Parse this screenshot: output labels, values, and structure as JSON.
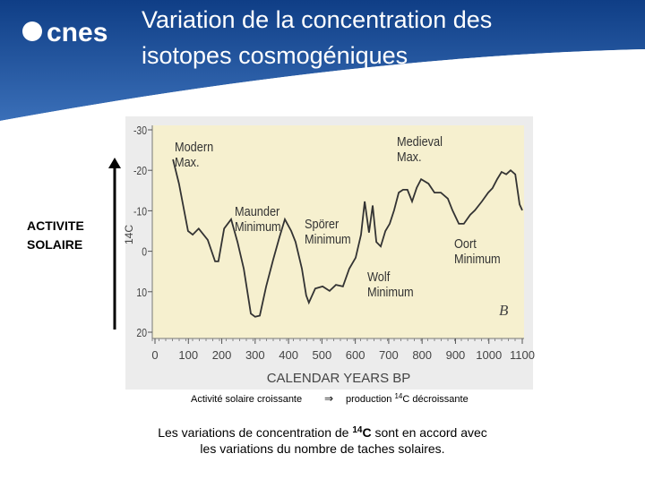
{
  "slide": {
    "logo": "cnes",
    "title": [
      "Variation de la concentration des",
      "isotopes cosmogéniques"
    ],
    "side_label": [
      "ACTIVITE",
      "SOLAIRE"
    ],
    "caption": {
      "left": "Activité solaire croissante",
      "arrow": "⇒",
      "right_pre": "production ",
      "right_sup": "14",
      "right_post": "C décroissante"
    },
    "footer": {
      "pre": "Les variations de concentration de ",
      "sup": "14",
      "el": "C",
      "post": " sont en accord avec",
      "line2": "les variations du nombre de taches solaires."
    }
  },
  "chart_data": {
    "type": "line",
    "xlabel": "CALENDAR YEARS BP",
    "ylabel": "14C",
    "panel": "B",
    "color": "#333333",
    "xlim": [
      0,
      1100
    ],
    "xticks": [
      0,
      100,
      200,
      300,
      400,
      500,
      600,
      700,
      800,
      900,
      1000,
      1100
    ],
    "ylim": [
      20,
      -30
    ],
    "yticks": [
      -30,
      -20,
      -10,
      0,
      10,
      20
    ],
    "annotations": [
      [
        "Modern",
        "Max."
      ],
      [
        "Maunder",
        "Minimum"
      ],
      [
        "Spörer",
        "Minimum"
      ],
      [
        "Wolf",
        "Minimum"
      ],
      [
        "Medieval",
        "Max."
      ],
      [
        "Oort",
        "Minimum"
      ]
    ],
    "x": [
      54,
      72,
      99,
      113,
      131,
      158,
      180,
      190,
      207,
      228,
      247,
      266,
      287,
      300,
      314,
      333,
      354,
      373,
      389,
      408,
      421,
      440,
      453,
      461,
      480,
      502,
      523,
      542,
      563,
      582,
      601,
      617,
      628,
      641,
      652,
      663,
      676,
      690,
      703,
      716,
      730,
      743,
      756,
      770,
      784,
      797,
      819,
      837,
      856,
      877,
      891,
      910,
      925,
      944,
      958,
      979,
      998,
      1011,
      1025,
      1038,
      1052,
      1065,
      1079,
      1092,
      1100
    ],
    "values": [
      -22.7,
      -16.7,
      -5,
      -4.1,
      -5.6,
      -2.8,
      2.5,
      2.5,
      -5.6,
      -7.9,
      -2.3,
      4.3,
      15.4,
      16.2,
      15.9,
      8.7,
      2.1,
      -3.5,
      -7.9,
      -5,
      -2.3,
      4.3,
      10.9,
      12.7,
      9.2,
      8.7,
      9.8,
      8.3,
      8.7,
      4.3,
      1.6,
      -4.1,
      -12.3,
      -4.6,
      -11.3,
      -2.3,
      -1.2,
      -5,
      -6.8,
      -10.1,
      -14.5,
      -15.2,
      -15.2,
      -12.3,
      -15.7,
      -17.8,
      -16.7,
      -14.5,
      -14.5,
      -13,
      -10.1,
      -6.8,
      -6.8,
      -9,
      -10.1,
      -12.3,
      -14.5,
      -15.6,
      -17.8,
      -19.6,
      -19,
      -20,
      -19,
      -11.6,
      -10.1
    ]
  }
}
